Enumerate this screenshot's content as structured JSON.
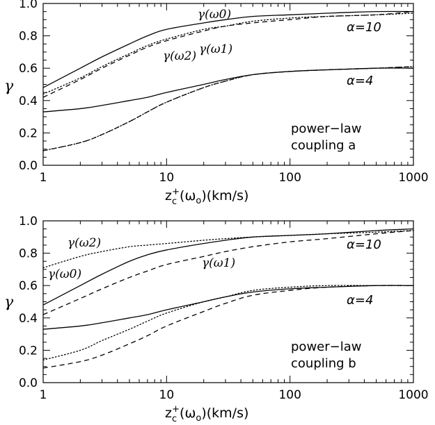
{
  "chart_data": [
    {
      "type": "line",
      "x_scale": "log",
      "xlim": [
        1,
        1000
      ],
      "ylim": [
        0,
        1
      ],
      "x_ticks": [
        "1",
        "10",
        "100",
        "1000"
      ],
      "y_ticks": [
        "0.0",
        "0.2",
        "0.4",
        "0.6",
        "0.8",
        "1.0"
      ],
      "xlabel": "z_c^+(ω_o)(km/s)",
      "ylabel": "γ",
      "corner_text": [
        "power−law",
        "coupling a"
      ],
      "alpha_labels": [
        "α=10",
        "α=4"
      ],
      "curve_labels": [
        "γ(ω0)",
        "γ(ω2)",
        "γ(ω1)"
      ],
      "series": [
        {
          "name": "γ(ω0)",
          "style": "solid",
          "group": "α=10",
          "x": [
            1,
            2,
            3,
            5,
            7,
            10,
            20,
            30,
            50,
            100,
            200,
            500,
            1000
          ],
          "y": [
            0.48,
            0.6,
            0.67,
            0.75,
            0.8,
            0.84,
            0.88,
            0.9,
            0.92,
            0.93,
            0.94,
            0.95,
            0.95
          ]
        },
        {
          "name": "γ(ω1)",
          "style": "dashed",
          "group": "α=10",
          "x": [
            1,
            2,
            3,
            5,
            7,
            10,
            20,
            30,
            50,
            100,
            200,
            500,
            1000
          ],
          "y": [
            0.42,
            0.53,
            0.6,
            0.68,
            0.73,
            0.77,
            0.83,
            0.86,
            0.88,
            0.9,
            0.92,
            0.93,
            0.95
          ]
        },
        {
          "name": "γ(ω2)",
          "style": "dotted",
          "group": "α=10",
          "x": [
            1,
            2,
            3,
            5,
            7,
            10,
            20,
            30,
            50,
            100,
            200,
            500,
            1000
          ],
          "y": [
            0.44,
            0.54,
            0.61,
            0.69,
            0.74,
            0.78,
            0.84,
            0.86,
            0.89,
            0.91,
            0.92,
            0.93,
            0.94
          ]
        },
        {
          "name": "γ(ω0)",
          "style": "solid",
          "group": "α=4",
          "x": [
            1,
            2,
            3,
            5,
            7,
            10,
            20,
            30,
            50,
            100,
            200,
            500,
            1000
          ],
          "y": [
            0.33,
            0.35,
            0.37,
            0.4,
            0.42,
            0.45,
            0.5,
            0.53,
            0.56,
            0.58,
            0.59,
            0.6,
            0.6
          ]
        },
        {
          "name": "γ(ω1)",
          "style": "dashed",
          "group": "α=4",
          "x": [
            1,
            2,
            3,
            5,
            7,
            10,
            20,
            30,
            50,
            100,
            200,
            500,
            1000
          ],
          "y": [
            0.09,
            0.14,
            0.19,
            0.27,
            0.33,
            0.39,
            0.48,
            0.52,
            0.56,
            0.58,
            0.59,
            0.6,
            0.61
          ]
        },
        {
          "name": "γ(ω2)",
          "style": "dotted",
          "group": "α=4",
          "x": [
            1,
            2,
            3,
            5,
            7,
            10,
            20,
            30,
            50,
            100,
            200,
            500,
            1000
          ],
          "y": [
            0.09,
            0.14,
            0.19,
            0.27,
            0.33,
            0.39,
            0.48,
            0.52,
            0.56,
            0.58,
            0.59,
            0.6,
            0.61
          ]
        }
      ]
    },
    {
      "type": "line",
      "x_scale": "log",
      "xlim": [
        1,
        1000
      ],
      "ylim": [
        0,
        1
      ],
      "x_ticks": [
        "1",
        "10",
        "100",
        "1000"
      ],
      "y_ticks": [
        "0.0",
        "0.2",
        "0.4",
        "0.6",
        "0.8",
        "1.0"
      ],
      "xlabel": "z_c^+(ω_o)(km/s)",
      "ylabel": "γ",
      "corner_text": [
        "power−law",
        "coupling b"
      ],
      "alpha_labels": [
        "α=10",
        "α=4"
      ],
      "curve_labels": [
        "γ(ω2)",
        "γ(ω0)",
        "γ(ω1)"
      ],
      "series": [
        {
          "name": "γ(ω2)",
          "style": "dotted",
          "group": "α=10",
          "x": [
            1,
            2,
            3,
            5,
            7,
            10,
            20,
            30,
            50,
            100,
            200,
            500,
            1000
          ],
          "y": [
            0.71,
            0.78,
            0.81,
            0.84,
            0.85,
            0.86,
            0.88,
            0.89,
            0.9,
            0.91,
            0.92,
            0.93,
            0.94
          ]
        },
        {
          "name": "γ(ω0)",
          "style": "solid",
          "group": "α=10",
          "x": [
            1,
            2,
            3,
            5,
            7,
            10,
            20,
            30,
            50,
            100,
            200,
            500,
            1000
          ],
          "y": [
            0.48,
            0.6,
            0.67,
            0.75,
            0.79,
            0.82,
            0.86,
            0.88,
            0.9,
            0.91,
            0.92,
            0.94,
            0.95
          ]
        },
        {
          "name": "γ(ω1)",
          "style": "dashed",
          "group": "α=10",
          "x": [
            1,
            2,
            3,
            5,
            7,
            10,
            20,
            30,
            50,
            100,
            200,
            500,
            1000
          ],
          "y": [
            0.42,
            0.52,
            0.58,
            0.65,
            0.69,
            0.73,
            0.78,
            0.81,
            0.84,
            0.87,
            0.89,
            0.92,
            0.94
          ]
        },
        {
          "name": "γ(ω0)",
          "style": "solid",
          "group": "α=4",
          "x": [
            1,
            2,
            3,
            5,
            7,
            10,
            20,
            30,
            50,
            100,
            200,
            500,
            1000
          ],
          "y": [
            0.33,
            0.35,
            0.37,
            0.4,
            0.42,
            0.45,
            0.5,
            0.53,
            0.56,
            0.58,
            0.59,
            0.6,
            0.6
          ]
        },
        {
          "name": "γ(ω2)",
          "style": "dotted",
          "group": "α=4",
          "x": [
            1,
            2,
            3,
            5,
            7,
            10,
            20,
            30,
            50,
            100,
            200,
            500,
            1000
          ],
          "y": [
            0.14,
            0.2,
            0.26,
            0.33,
            0.38,
            0.43,
            0.5,
            0.53,
            0.57,
            0.59,
            0.6,
            0.6,
            0.6
          ]
        },
        {
          "name": "γ(ω1)",
          "style": "dashed",
          "group": "α=4",
          "x": [
            1,
            2,
            3,
            5,
            7,
            10,
            20,
            30,
            50,
            100,
            200,
            500,
            1000
          ],
          "y": [
            0.09,
            0.13,
            0.17,
            0.24,
            0.29,
            0.35,
            0.44,
            0.49,
            0.54,
            0.57,
            0.59,
            0.6,
            0.6
          ]
        }
      ]
    }
  ]
}
